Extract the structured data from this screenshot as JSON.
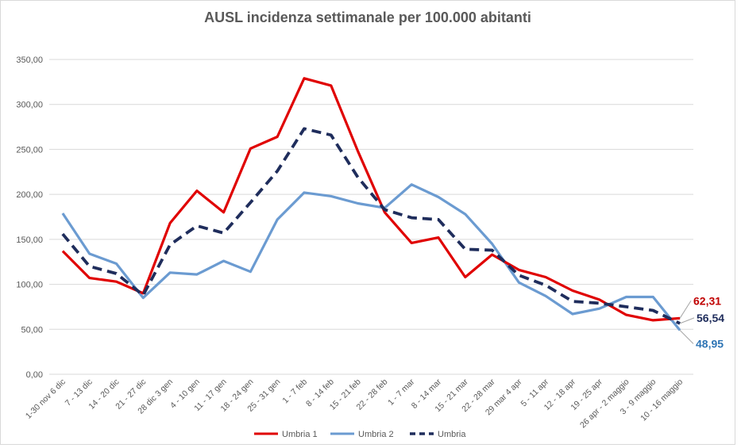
{
  "chart_data": {
    "type": "line",
    "title": "AUSL incidenza settimanale per 100.000 abitanti",
    "xlabel": "",
    "ylabel": "",
    "ylim": [
      0,
      350
    ],
    "yticks": [
      0,
      50,
      100,
      150,
      200,
      250,
      300,
      350
    ],
    "ytick_labels": [
      "0,00",
      "50,00",
      "100,00",
      "150,00",
      "200,00",
      "250,00",
      "300,00",
      "350,00"
    ],
    "grid": true,
    "legend_position": "bottom",
    "categories": [
      "1-30 nov 6 dic",
      "7 - 13 dic",
      "14 - 20 dic",
      "21 - 27 dic",
      "28 dic 3 gen",
      "4 - 10 gen",
      "11 - 17 gen",
      "18 - 24 gen",
      "25 - 31 gen",
      "1 - 7 feb",
      "8 - 14 feb",
      "15 - 21 feb",
      "22 - 28 feb",
      "1 - 7 mar",
      "8 - 14 mar",
      "15 - 21 mar",
      "22 - 28 mar",
      "29 mar 4 apr",
      "5 - 11 apr",
      "12 - 18 apr",
      "19 - 25 apr",
      "26 apr - 2 maggio",
      "3 - 9 maggio",
      "10 - 16 maggio"
    ],
    "series": [
      {
        "name": "Umbria 1",
        "color": "#e00000",
        "style": "solid",
        "values": [
          137,
          107,
          103,
          90,
          168,
          204,
          180,
          251,
          264,
          329,
          321,
          248,
          180,
          146,
          152,
          108,
          133,
          116,
          108,
          93,
          83,
          66,
          60,
          62.31
        ],
        "end_label": "62,31"
      },
      {
        "name": "Umbria 2",
        "color": "#6b9bd1",
        "style": "solid",
        "values": [
          179,
          134,
          123,
          85,
          113,
          111,
          126,
          114,
          172,
          202,
          198,
          190,
          185,
          211,
          197,
          178,
          145,
          102,
          87,
          67,
          73,
          86,
          86,
          48.95
        ],
        "end_label": "48,95"
      },
      {
        "name": "Umbria",
        "color": "#1f2d5c",
        "style": "dashed",
        "values": [
          156,
          120,
          112,
          88,
          144,
          165,
          157,
          191,
          226,
          273,
          266,
          219,
          183,
          174,
          172,
          139,
          138,
          110,
          99,
          81,
          79,
          75,
          71,
          56.54
        ],
        "end_label": "56,54"
      }
    ]
  }
}
